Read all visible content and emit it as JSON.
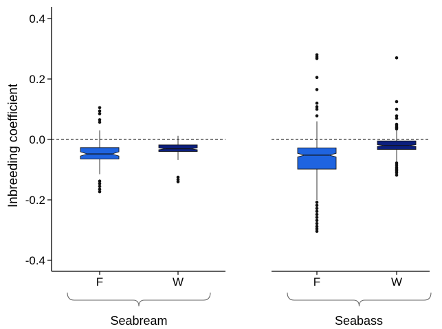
{
  "chart_data": {
    "type": "box",
    "ylabel": "Inbreeding coefficient",
    "ylim": [
      -0.44,
      0.44
    ],
    "yticks": [
      {
        "value": 0.4,
        "label": "0.4"
      },
      {
        "value": 0.2,
        "label": "0.2"
      },
      {
        "value": 0.0,
        "label": "0.0"
      },
      {
        "value": -0.2,
        "label": "-0.2"
      },
      {
        "value": -0.4,
        "label": "-0.4"
      }
    ],
    "reference_line": {
      "value": 0.0,
      "style": "dashed"
    },
    "notched": true,
    "panels": [
      {
        "group": "Seabream",
        "categories": [
          "F",
          "W"
        ],
        "boxes": [
          {
            "category": "F",
            "color": "#1f64e0",
            "whisker_low": -0.115,
            "q1": -0.065,
            "median": -0.048,
            "q3": -0.027,
            "whisker_high": 0.03,
            "notch_low": -0.055,
            "notch_high": -0.041,
            "outliers": [
              0.105,
              0.094,
              0.085,
              0.065,
              0.057,
              -0.138,
              -0.146,
              -0.155,
              -0.165,
              -0.173
            ]
          },
          {
            "category": "W",
            "color": "#0c1f7e",
            "whisker_low": -0.068,
            "q1": -0.04,
            "median": -0.031,
            "q3": -0.018,
            "whisker_high": 0.012,
            "notch_low": -0.034,
            "notch_high": -0.028,
            "outliers": [
              -0.125,
              -0.133,
              -0.14
            ]
          }
        ]
      },
      {
        "group": "Seabass",
        "categories": [
          "F",
          "W"
        ],
        "boxes": [
          {
            "category": "F",
            "color": "#1f64e0",
            "whisker_low": -0.2,
            "q1": -0.098,
            "median": -0.052,
            "q3": -0.028,
            "whisker_high": 0.06,
            "notch_low": -0.058,
            "notch_high": -0.046,
            "outliers": [
              0.28,
              0.273,
              0.268,
              0.205,
              0.165,
              0.12,
              0.108,
              0.1,
              0.078,
              -0.208,
              -0.218,
              -0.228,
              -0.238,
              -0.248,
              -0.258,
              -0.268,
              -0.278,
              -0.288,
              -0.296,
              -0.304
            ]
          },
          {
            "category": "W",
            "color": "#0c1f7e",
            "whisker_low": -0.072,
            "q1": -0.033,
            "median": -0.02,
            "q3": -0.005,
            "whisker_high": 0.03,
            "notch_low": -0.023,
            "notch_high": -0.017,
            "outliers": [
              0.27,
              0.125,
              0.1,
              0.078,
              0.07,
              0.05,
              0.045,
              0.04,
              0.035,
              -0.078,
              -0.085,
              -0.092,
              -0.098,
              -0.104,
              -0.11,
              -0.118
            ]
          }
        ]
      }
    ]
  }
}
